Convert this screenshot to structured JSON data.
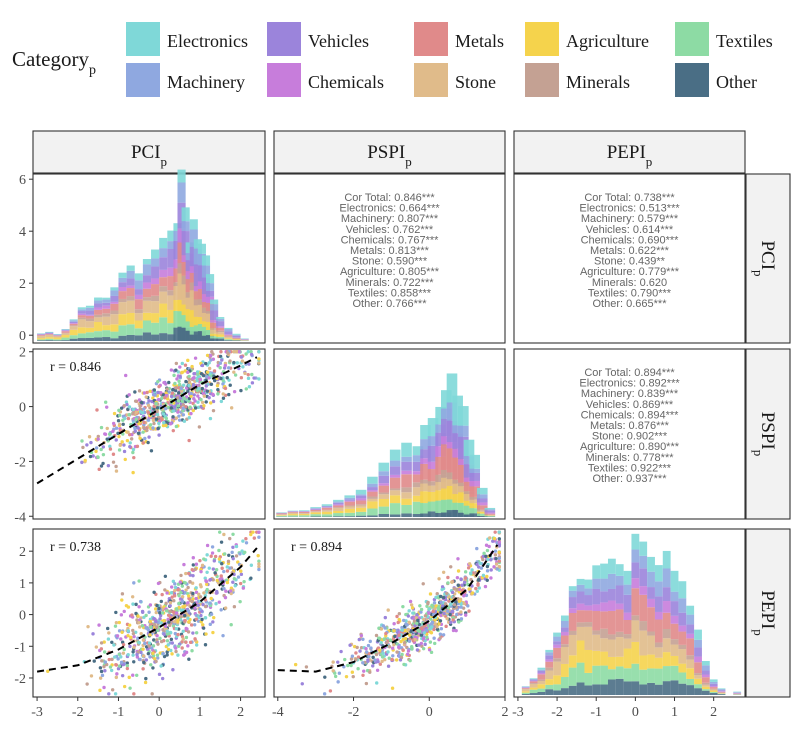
{
  "legend": {
    "title": "Category",
    "title_sub": "p",
    "items": [
      {
        "name": "Electronics",
        "color": "#7fd8d8"
      },
      {
        "name": "Vehicles",
        "color": "#9b84db"
      },
      {
        "name": "Metals",
        "color": "#e08a8a"
      },
      {
        "name": "Agriculture",
        "color": "#f5d34c"
      },
      {
        "name": "Textiles",
        "color": "#8ddba4"
      },
      {
        "name": "Machinery",
        "color": "#8fa8e0"
      },
      {
        "name": "Chemicals",
        "color": "#c77ddb"
      },
      {
        "name": "Stone",
        "color": "#e0bb8a"
      },
      {
        "name": "Minerals",
        "color": "#c4a193"
      },
      {
        "name": "Other",
        "color": "#4a6e85"
      }
    ]
  },
  "chart_data": {
    "type": "scatter",
    "variables": [
      {
        "name": "PCI",
        "sub": "p"
      },
      {
        "name": "PSPI",
        "sub": "p"
      },
      {
        "name": "PEPI",
        "sub": "p"
      }
    ],
    "axes": {
      "x_ticks": [
        [
          "-3",
          "-2",
          "-1",
          "0",
          "1",
          "2"
        ],
        [
          "-4",
          "-2",
          "0",
          "2"
        ],
        [
          "-3",
          "-2",
          "-1",
          "0",
          "1",
          "2"
        ]
      ],
      "x_tick_values": [
        [
          -3,
          -2,
          -1,
          0,
          1,
          2
        ],
        [
          -4,
          -2,
          0,
          2
        ],
        [
          -3,
          -2,
          -1,
          0,
          1,
          2
        ]
      ],
      "xlim": [
        [
          -3.1,
          2.6
        ],
        [
          -4.1,
          2.0
        ],
        [
          -3.1,
          2.8
        ]
      ],
      "row_y_ticks": [
        [
          "0",
          "2",
          "4",
          "6"
        ],
        [
          "-4",
          "-2",
          "0",
          "2"
        ],
        [
          "-2",
          "-1",
          "0",
          "1",
          "2"
        ]
      ],
      "row_y_tick_values": [
        [
          0,
          2,
          4,
          6
        ],
        [
          -4,
          -2,
          0,
          2
        ],
        [
          -2,
          -1,
          0,
          1,
          2
        ]
      ],
      "row_ylim": [
        [
          -0.3,
          6.2
        ],
        [
          -4.1,
          2.1
        ],
        [
          -2.6,
          2.7
        ]
      ]
    },
    "correlations": {
      "r_labels": [
        "r = 0.846",
        "r = 0.738",
        "r = 0.894"
      ],
      "pci_pspi": [
        "Cor Total: 0.846***",
        "Electronics: 0.664***",
        "Machinery: 0.807***",
        "Vehicles: 0.762***",
        "Chemicals: 0.767***",
        "Metals: 0.813***",
        "Stone: 0.590***",
        "Agriculture: 0.805***",
        "Minerals: 0.722***",
        "Textiles: 0.858***",
        "Other: 0.766***"
      ],
      "pci_pepi": [
        "Cor Total: 0.738***",
        "Electronics: 0.513***",
        "Machinery: 0.579***",
        "Vehicles: 0.614***",
        "Chemicals: 0.690***",
        "Metals: 0.622***",
        "Stone: 0.439**",
        "Agriculture: 0.779***",
        "Minerals: 0.620",
        "Textiles: 0.790***",
        "Other: 0.665***"
      ],
      "pspi_pepi": [
        "Cor Total: 0.894***",
        "Electronics: 0.892***",
        "Machinery: 0.839***",
        "Vehicles: 0.869***",
        "Chemicals: 0.894***",
        "Metals: 0.876***",
        "Stone: 0.902***",
        "Agriculture: 0.890***",
        "Minerals: 0.778***",
        "Textiles: 0.922***",
        "Other: 0.937***"
      ]
    },
    "trend_lines": {
      "pci_pspi": {
        "x": [
          -3.0,
          -2.0,
          -1.0,
          0.0,
          1.0,
          2.0,
          2.4
        ],
        "y": [
          -2.8,
          -1.9,
          -1.0,
          -0.1,
          0.8,
          1.5,
          1.8
        ]
      },
      "pci_pepi": {
        "x": [
          -3.0,
          -2.0,
          -1.0,
          0.0,
          1.0,
          2.0,
          2.4
        ],
        "y": [
          -1.8,
          -1.6,
          -1.1,
          -0.4,
          0.4,
          1.5,
          2.1
        ]
      },
      "pspi_pepi": {
        "x": [
          -4.0,
          -3.0,
          -2.0,
          -1.0,
          0.0,
          1.0,
          1.8
        ],
        "y": [
          -1.75,
          -1.8,
          -1.5,
          -0.9,
          -0.2,
          0.8,
          2.2
        ]
      }
    },
    "histograms": {
      "PCI": {
        "bins_x": [
          -2.9,
          -2.7,
          -2.5,
          -2.3,
          -2.1,
          -1.9,
          -1.7,
          -1.5,
          -1.3,
          -1.1,
          -0.9,
          -0.7,
          -0.5,
          -0.3,
          -0.1,
          0.1,
          0.3,
          0.45,
          0.55,
          0.65,
          0.75,
          0.85,
          0.95,
          1.05,
          1.15,
          1.25,
          1.35,
          1.5,
          1.7,
          1.9,
          2.1
        ],
        "totals": [
          0.3,
          0.4,
          0.3,
          0.5,
          0.9,
          1.2,
          1.5,
          1.7,
          1.9,
          2.2,
          2.4,
          2.7,
          3.0,
          3.3,
          3.6,
          4.1,
          4.2,
          4.7,
          6.0,
          5.0,
          3.9,
          4.9,
          4.2,
          3.6,
          3.3,
          2.4,
          1.7,
          0.9,
          0.5,
          0.3,
          0.1
        ]
      },
      "PSPI": {
        "bins_x": [
          -3.9,
          -3.6,
          -3.3,
          -3.0,
          -2.7,
          -2.4,
          -2.1,
          -1.8,
          -1.5,
          -1.2,
          -0.9,
          -0.6,
          -0.3,
          -0.1,
          0.1,
          0.3,
          0.45,
          0.6,
          0.75,
          0.9,
          1.05,
          1.2,
          1.4,
          1.6
        ],
        "totals": [
          0.15,
          0.2,
          0.2,
          0.3,
          0.4,
          0.6,
          0.8,
          1.0,
          1.3,
          1.6,
          1.9,
          2.2,
          2.5,
          2.8,
          3.2,
          3.6,
          4.7,
          4.3,
          3.7,
          3.2,
          2.6,
          1.8,
          0.9,
          0.3
        ]
      },
      "PEPI": {
        "bins_x": [
          -2.8,
          -2.6,
          -2.4,
          -2.2,
          -2.0,
          -1.8,
          -1.6,
          -1.4,
          -1.2,
          -1.0,
          -0.8,
          -0.6,
          -0.4,
          -0.2,
          0.0,
          0.2,
          0.4,
          0.6,
          0.8,
          1.0,
          1.2,
          1.4,
          1.6,
          1.8,
          2.0,
          2.2,
          2.6
        ],
        "totals": [
          0.3,
          0.5,
          0.9,
          1.4,
          1.9,
          2.6,
          3.2,
          3.6,
          3.9,
          4.1,
          4.4,
          4.3,
          4.0,
          3.7,
          4.4,
          4.6,
          4.2,
          4.0,
          4.3,
          4.4,
          3.5,
          2.8,
          1.8,
          1.0,
          0.5,
          0.2,
          0.1
        ]
      }
    }
  }
}
